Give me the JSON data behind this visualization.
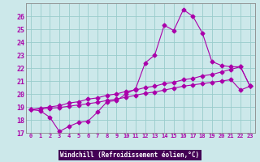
{
  "xlabel": "Windchill (Refroidissement éolien,°C)",
  "background_color": "#cce8ea",
  "line_color": "#aa00aa",
  "grid_color": "#99cccc",
  "axis_label_bg": "#440066",
  "line1_y": [
    18.8,
    18.7,
    18.2,
    17.1,
    17.5,
    17.8,
    17.9,
    18.6,
    19.4,
    19.5,
    20.0,
    20.4,
    22.4,
    23.0,
    25.3,
    24.9,
    26.5,
    26.0,
    24.7,
    22.5,
    22.2,
    22.1,
    22.1,
    20.6
  ],
  "line2_y": [
    18.8,
    18.9,
    19.0,
    19.1,
    19.3,
    19.4,
    19.6,
    19.7,
    19.9,
    20.0,
    20.2,
    20.3,
    20.5,
    20.6,
    20.8,
    20.9,
    21.1,
    21.2,
    21.4,
    21.5,
    21.7,
    21.9,
    22.1,
    20.6
  ],
  "line3_y": [
    18.8,
    18.85,
    18.9,
    18.95,
    19.05,
    19.15,
    19.25,
    19.35,
    19.5,
    19.6,
    19.75,
    19.9,
    20.05,
    20.15,
    20.3,
    20.45,
    20.6,
    20.7,
    20.8,
    20.9,
    21.0,
    21.1,
    20.3,
    20.6
  ],
  "ylim": [
    17,
    27
  ],
  "xlim": [
    -0.5,
    23.5
  ],
  "yticks": [
    17,
    18,
    19,
    20,
    21,
    22,
    23,
    24,
    25,
    26
  ],
  "xticks": [
    0,
    1,
    2,
    3,
    4,
    5,
    6,
    7,
    8,
    9,
    10,
    11,
    12,
    13,
    14,
    15,
    16,
    17,
    18,
    19,
    20,
    21,
    22,
    23
  ],
  "xlabel_fontsize": 5.5,
  "ytick_fontsize": 6,
  "xtick_fontsize": 5,
  "marker_size": 2.5
}
